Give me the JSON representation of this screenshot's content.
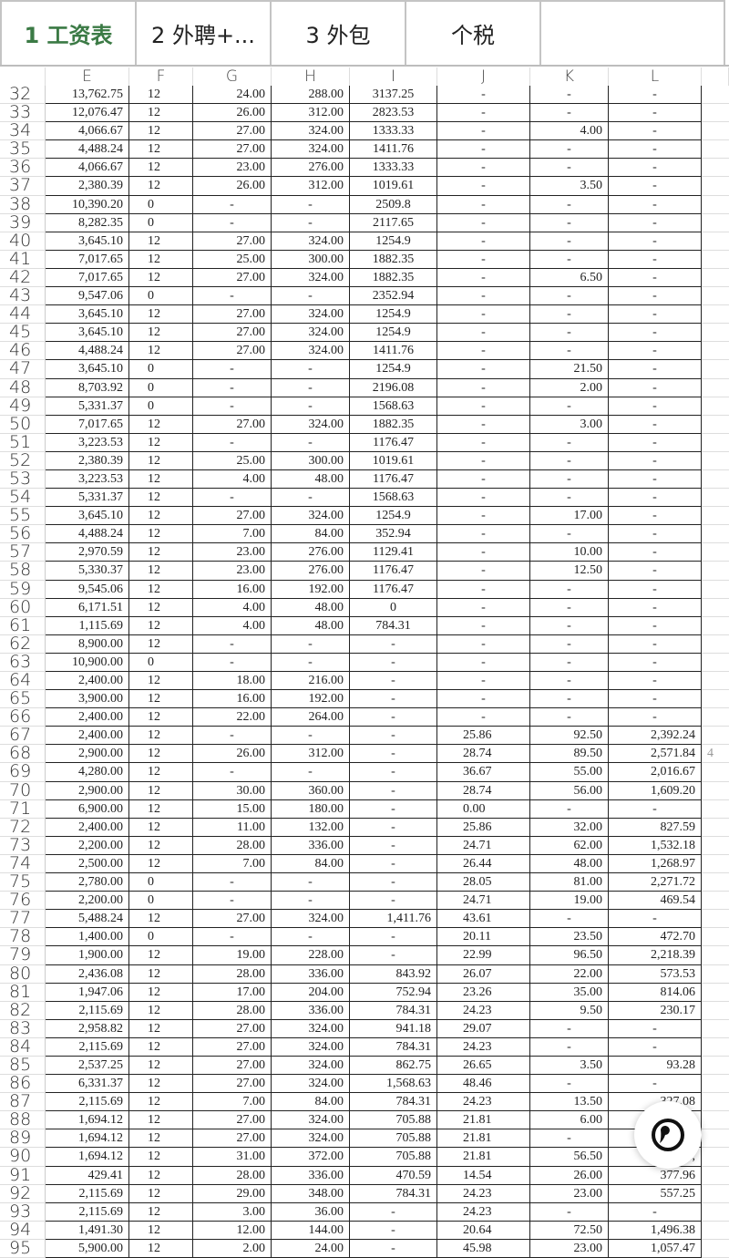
{
  "tabs": [
    {
      "label": "1 工资表",
      "active": true
    },
    {
      "label": "2 外聘+..."
    },
    {
      "label": "3 外包"
    },
    {
      "label": "个税"
    },
    {
      "label": ""
    }
  ],
  "columns": [
    "",
    "E",
    "F",
    "G",
    "H",
    "I",
    "J",
    "K",
    "L",
    ""
  ],
  "accent_color": "#3b7a45",
  "rows": [
    {
      "n": "32",
      "v": [
        "13,762.75",
        "12",
        "24.00",
        "288.00",
        "3137.25",
        "-",
        "-",
        "-"
      ]
    },
    {
      "n": "33",
      "v": [
        "12,076.47",
        "12",
        "26.00",
        "312.00",
        "2823.53",
        "-",
        "-",
        "-"
      ]
    },
    {
      "n": "34",
      "v": [
        "4,066.67",
        "12",
        "27.00",
        "324.00",
        "1333.33",
        "-",
        "4.00",
        "-"
      ]
    },
    {
      "n": "35",
      "v": [
        "4,488.24",
        "12",
        "27.00",
        "324.00",
        "1411.76",
        "-",
        "-",
        "-"
      ]
    },
    {
      "n": "36",
      "v": [
        "4,066.67",
        "12",
        "23.00",
        "276.00",
        "1333.33",
        "-",
        "-",
        "-"
      ]
    },
    {
      "n": "37",
      "v": [
        "2,380.39",
        "12",
        "26.00",
        "312.00",
        "1019.61",
        "-",
        "3.50",
        "-"
      ]
    },
    {
      "n": "38",
      "v": [
        "10,390.20",
        "0",
        "-",
        "-",
        "2509.8",
        "-",
        "-",
        "-"
      ]
    },
    {
      "n": "39",
      "v": [
        "8,282.35",
        "0",
        "-",
        "-",
        "2117.65",
        "-",
        "-",
        "-"
      ]
    },
    {
      "n": "40",
      "v": [
        "3,645.10",
        "12",
        "27.00",
        "324.00",
        "1254.9",
        "-",
        "-",
        "-"
      ]
    },
    {
      "n": "41",
      "v": [
        "7,017.65",
        "12",
        "25.00",
        "300.00",
        "1882.35",
        "-",
        "-",
        "-"
      ]
    },
    {
      "n": "42",
      "v": [
        "7,017.65",
        "12",
        "27.00",
        "324.00",
        "1882.35",
        "-",
        "6.50",
        "-"
      ]
    },
    {
      "n": "43",
      "v": [
        "9,547.06",
        "0",
        "-",
        "-",
        "2352.94",
        "-",
        "-",
        "-"
      ]
    },
    {
      "n": "44",
      "v": [
        "3,645.10",
        "12",
        "27.00",
        "324.00",
        "1254.9",
        "-",
        "-",
        "-"
      ]
    },
    {
      "n": "45",
      "v": [
        "3,645.10",
        "12",
        "27.00",
        "324.00",
        "1254.9",
        "-",
        "-",
        "-"
      ]
    },
    {
      "n": "46",
      "v": [
        "4,488.24",
        "12",
        "27.00",
        "324.00",
        "1411.76",
        "-",
        "-",
        "-"
      ]
    },
    {
      "n": "47",
      "v": [
        "3,645.10",
        "0",
        "-",
        "-",
        "1254.9",
        "-",
        "21.50",
        "-"
      ]
    },
    {
      "n": "48",
      "v": [
        "8,703.92",
        "0",
        "-",
        "-",
        "2196.08",
        "-",
        "2.00",
        "-"
      ]
    },
    {
      "n": "49",
      "v": [
        "5,331.37",
        "0",
        "-",
        "-",
        "1568.63",
        "-",
        "-",
        "-"
      ]
    },
    {
      "n": "50",
      "v": [
        "7,017.65",
        "12",
        "27.00",
        "324.00",
        "1882.35",
        "-",
        "3.00",
        "-"
      ]
    },
    {
      "n": "51",
      "v": [
        "3,223.53",
        "12",
        "-",
        "-",
        "1176.47",
        "-",
        "-",
        "-"
      ]
    },
    {
      "n": "52",
      "v": [
        "2,380.39",
        "12",
        "25.00",
        "300.00",
        "1019.61",
        "-",
        "-",
        "-"
      ]
    },
    {
      "n": "53",
      "v": [
        "3,223.53",
        "12",
        "4.00",
        "48.00",
        "1176.47",
        "-",
        "-",
        "-"
      ]
    },
    {
      "n": "54",
      "v": [
        "5,331.37",
        "12",
        "-",
        "-",
        "1568.63",
        "-",
        "-",
        "-"
      ]
    },
    {
      "n": "55",
      "v": [
        "3,645.10",
        "12",
        "27.00",
        "324.00",
        "1254.9",
        "-",
        "17.00",
        "-"
      ]
    },
    {
      "n": "56",
      "v": [
        "4,488.24",
        "12",
        "7.00",
        "84.00",
        "352.94",
        "-",
        "-",
        "-"
      ]
    },
    {
      "n": "57",
      "v": [
        "2,970.59",
        "12",
        "23.00",
        "276.00",
        "1129.41",
        "-",
        "10.00",
        "-"
      ]
    },
    {
      "n": "58",
      "v": [
        "5,330.37",
        "12",
        "23.00",
        "276.00",
        "1176.47",
        "-",
        "12.50",
        "-"
      ]
    },
    {
      "n": "59",
      "v": [
        "9,545.06",
        "12",
        "16.00",
        "192.00",
        "1176.47",
        "-",
        "-",
        "-"
      ]
    },
    {
      "n": "60",
      "v": [
        "6,171.51",
        "12",
        "4.00",
        "48.00",
        "0",
        "-",
        "-",
        "-"
      ]
    },
    {
      "n": "61",
      "v": [
        "1,115.69",
        "12",
        "4.00",
        "48.00",
        "784.31",
        "-",
        "-",
        "-"
      ]
    },
    {
      "n": "62",
      "v": [
        "8,900.00",
        "12",
        "-",
        "-",
        "-",
        "-",
        "-",
        "-"
      ]
    },
    {
      "n": "63",
      "v": [
        "10,900.00",
        "0",
        "-",
        "-",
        "-",
        "-",
        "-",
        "-"
      ]
    },
    {
      "n": "64",
      "v": [
        "2,400.00",
        "12",
        "18.00",
        "216.00",
        "-",
        "-",
        "-",
        "-"
      ]
    },
    {
      "n": "65",
      "v": [
        "3,900.00",
        "12",
        "16.00",
        "192.00",
        "-",
        "-",
        "-",
        "-"
      ]
    },
    {
      "n": "66",
      "v": [
        "2,400.00",
        "12",
        "22.00",
        "264.00",
        "-",
        "-",
        "-",
        "-"
      ]
    },
    {
      "n": "67",
      "v": [
        "2,400.00",
        "12",
        "-",
        "-",
        "-",
        "25.86",
        "92.50",
        "2,392.24"
      ]
    },
    {
      "n": "68",
      "v": [
        "2,900.00",
        "12",
        "26.00",
        "312.00",
        "-",
        "28.74",
        "89.50",
        "2,571.84"
      ],
      "m": "4"
    },
    {
      "n": "69",
      "v": [
        "4,280.00",
        "12",
        "-",
        "-",
        "-",
        "36.67",
        "55.00",
        "2,016.67"
      ]
    },
    {
      "n": "70",
      "v": [
        "2,900.00",
        "12",
        "30.00",
        "360.00",
        "-",
        "28.74",
        "56.00",
        "1,609.20"
      ]
    },
    {
      "n": "71",
      "v": [
        "6,900.00",
        "12",
        "15.00",
        "180.00",
        "-",
        "0.00",
        "-",
        "-"
      ]
    },
    {
      "n": "72",
      "v": [
        "2,400.00",
        "12",
        "11.00",
        "132.00",
        "-",
        "25.86",
        "32.00",
        "827.59"
      ]
    },
    {
      "n": "73",
      "v": [
        "2,200.00",
        "12",
        "28.00",
        "336.00",
        "-",
        "24.71",
        "62.00",
        "1,532.18"
      ]
    },
    {
      "n": "74",
      "v": [
        "2,500.00",
        "12",
        "7.00",
        "84.00",
        "-",
        "26.44",
        "48.00",
        "1,268.97"
      ]
    },
    {
      "n": "75",
      "v": [
        "2,780.00",
        "0",
        "-",
        "-",
        "-",
        "28.05",
        "81.00",
        "2,271.72"
      ]
    },
    {
      "n": "76",
      "v": [
        "2,200.00",
        "0",
        "-",
        "-",
        "-",
        "24.71",
        "19.00",
        "469.54"
      ]
    },
    {
      "n": "77",
      "v": [
        "5,488.24",
        "12",
        "27.00",
        "324.00",
        "1,411.76",
        "43.61",
        "-",
        "-"
      ]
    },
    {
      "n": "78",
      "v": [
        "1,400.00",
        "0",
        "-",
        "-",
        "-",
        "20.11",
        "23.50",
        "472.70"
      ]
    },
    {
      "n": "79",
      "v": [
        "1,900.00",
        "12",
        "19.00",
        "228.00",
        "-",
        "22.99",
        "96.50",
        "2,218.39"
      ]
    },
    {
      "n": "80",
      "v": [
        "2,436.08",
        "12",
        "28.00",
        "336.00",
        "843.92",
        "26.07",
        "22.00",
        "573.53"
      ]
    },
    {
      "n": "81",
      "v": [
        "1,947.06",
        "12",
        "17.00",
        "204.00",
        "752.94",
        "23.26",
        "35.00",
        "814.06"
      ]
    },
    {
      "n": "82",
      "v": [
        "2,115.69",
        "12",
        "28.00",
        "336.00",
        "784.31",
        "24.23",
        "9.50",
        "230.17"
      ]
    },
    {
      "n": "83",
      "v": [
        "2,958.82",
        "12",
        "27.00",
        "324.00",
        "941.18",
        "29.07",
        "-",
        "-"
      ]
    },
    {
      "n": "84",
      "v": [
        "2,115.69",
        "12",
        "27.00",
        "324.00",
        "784.31",
        "24.23",
        "-",
        "-"
      ]
    },
    {
      "n": "85",
      "v": [
        "2,537.25",
        "12",
        "27.00",
        "324.00",
        "862.75",
        "26.65",
        "3.50",
        "93.28"
      ]
    },
    {
      "n": "86",
      "v": [
        "6,331.37",
        "12",
        "27.00",
        "324.00",
        "1,568.63",
        "48.46",
        "-",
        "-"
      ]
    },
    {
      "n": "87",
      "v": [
        "2,115.69",
        "12",
        "7.00",
        "84.00",
        "784.31",
        "24.23",
        "13.50",
        "327.08"
      ]
    },
    {
      "n": "88",
      "v": [
        "1,694.12",
        "12",
        "27.00",
        "324.00",
        "705.88",
        "21.81",
        "6.00",
        ""
      ]
    },
    {
      "n": "89",
      "v": [
        "1,694.12",
        "12",
        "27.00",
        "324.00",
        "705.88",
        "21.81",
        "-",
        ""
      ]
    },
    {
      "n": "90",
      "v": [
        "1,694.12",
        "12",
        "31.00",
        "372.00",
        "705.88",
        "21.81",
        "56.50",
        "1,"
      ]
    },
    {
      "n": "91",
      "v": [
        "429.41",
        "12",
        "28.00",
        "336.00",
        "470.59",
        "14.54",
        "26.00",
        "377.96"
      ]
    },
    {
      "n": "92",
      "v": [
        "2,115.69",
        "12",
        "29.00",
        "348.00",
        "784.31",
        "24.23",
        "23.00",
        "557.25"
      ]
    },
    {
      "n": "93",
      "v": [
        "2,115.69",
        "12",
        "3.00",
        "36.00",
        "-",
        "24.23",
        "-",
        "-"
      ]
    },
    {
      "n": "94",
      "v": [
        "1,491.30",
        "12",
        "12.00",
        "144.00",
        "-",
        "20.64",
        "72.50",
        "1,496.38"
      ]
    },
    {
      "n": "95",
      "v": [
        "5,900.00",
        "12",
        "2.00",
        "24.00",
        "-",
        "45.98",
        "23.00",
        "1,057.47"
      ]
    }
  ],
  "floating_button": {
    "icon": "assistant-orb-icon"
  }
}
